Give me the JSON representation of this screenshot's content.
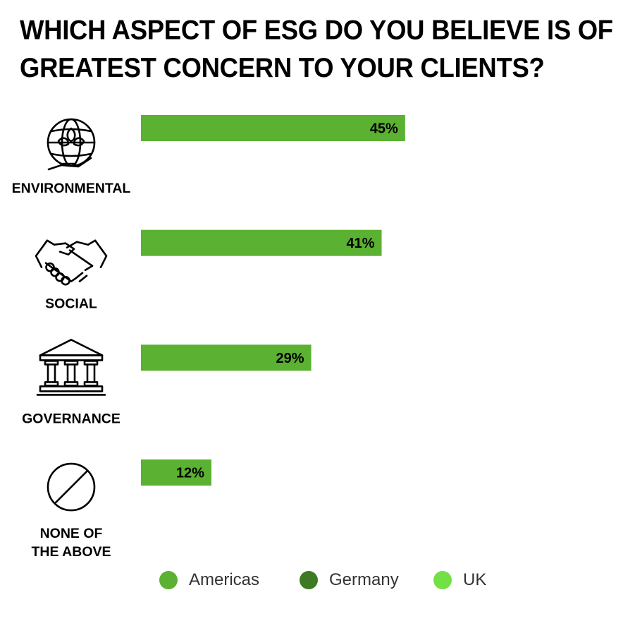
{
  "chart_data": {
    "type": "bar",
    "orientation": "horizontal",
    "title": "WHICH ASPECT OF ESG DO YOU BELIEVE IS OF GREATEST CONCERN TO YOUR CLIENTS?",
    "categories": [
      {
        "label": "ENVIRONMENTAL",
        "icon": "globe-plant-hand-icon"
      },
      {
        "label": "SOCIAL",
        "icon": "handshake-icon"
      },
      {
        "label": "GOVERNANCE",
        "icon": "government-building-icon"
      },
      {
        "label": "NONE OF THE ABOVE",
        "icon": "prohibited-circle-icon"
      }
    ],
    "series": [
      {
        "name": "Americas",
        "color": "#5bb131",
        "values": [
          45,
          41,
          29,
          12
        ],
        "value_labels": [
          "45%",
          "41%",
          "29%",
          "12%"
        ]
      }
    ],
    "legend": {
      "placement": "bottom",
      "items": [
        {
          "name": "Americas",
          "color": "#5bb131"
        },
        {
          "name": "Germany",
          "color": "#3d7a23"
        },
        {
          "name": "UK",
          "color": "#73e046"
        }
      ]
    },
    "unit": "%",
    "grid": false
  }
}
